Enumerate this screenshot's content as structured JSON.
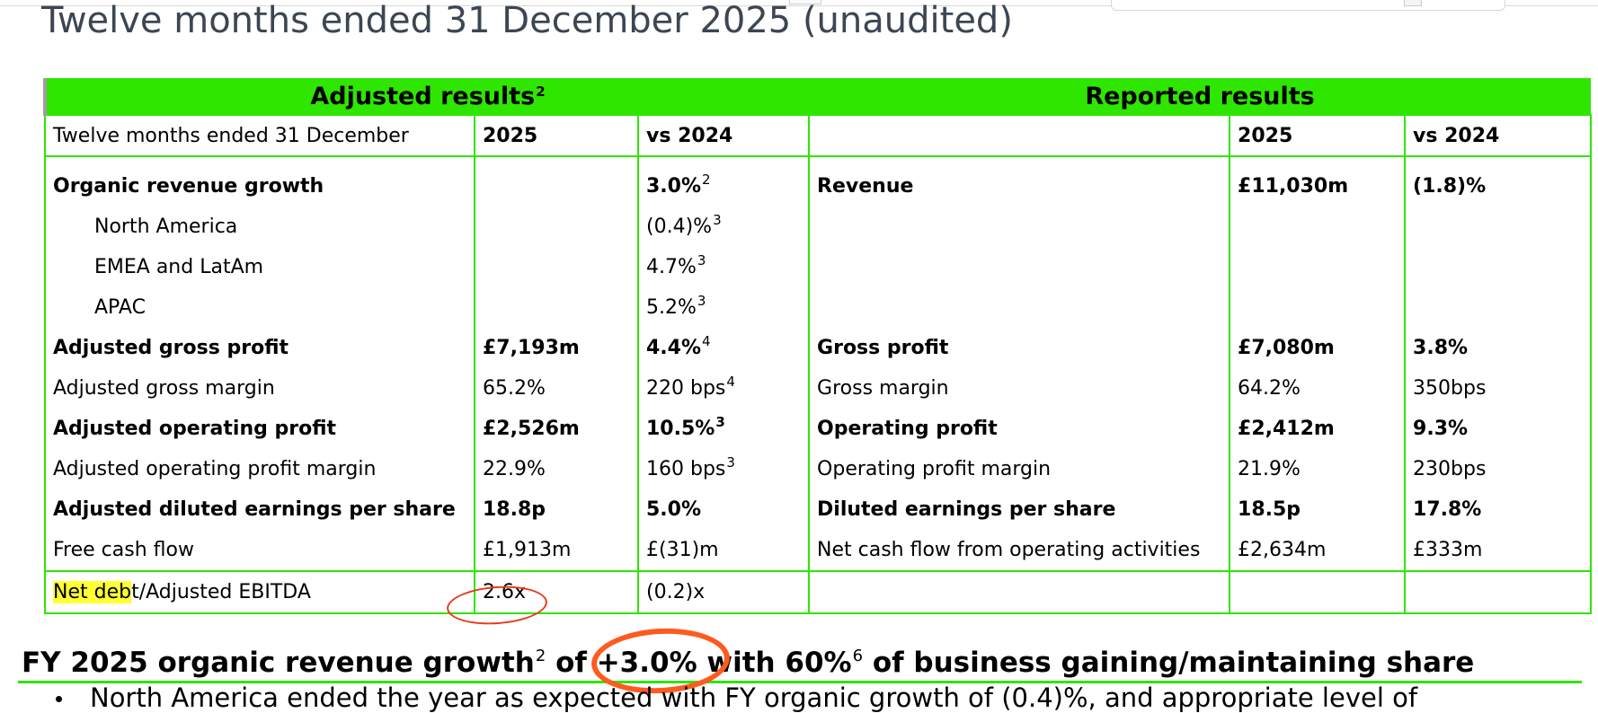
{
  "page": {
    "title": "Twelve months ended 31 December 2025 (unaudited)"
  },
  "table": {
    "band": {
      "adjusted_label": "Adjusted results",
      "adjusted_sup": "2",
      "reported_label": "Reported results"
    },
    "header": {
      "period_label": "Twelve months ended 31 December",
      "adj_year": "2025",
      "adj_vs": "vs 2024",
      "rep_metric": "",
      "rep_year": "2025",
      "rep_vs": "vs 2024"
    },
    "rows": [
      {
        "adj_metric": "Organic revenue growth",
        "adj_value": "",
        "adj_vs": "3.0%",
        "adj_vs_sup": "2",
        "rep_metric": "Revenue",
        "rep_value": "£11,030m",
        "rep_vs": "(1.8)%"
      },
      {
        "adj_metric": "North America",
        "adj_value": "",
        "adj_vs": "(0.4)%",
        "adj_vs_sup": "3",
        "rep_metric": "",
        "rep_value": "",
        "rep_vs": ""
      },
      {
        "adj_metric": "EMEA and LatAm",
        "adj_value": "",
        "adj_vs": "4.7%",
        "adj_vs_sup": "3",
        "rep_metric": "",
        "rep_value": "",
        "rep_vs": ""
      },
      {
        "adj_metric": "APAC",
        "adj_value": "",
        "adj_vs": "5.2%",
        "adj_vs_sup": "3",
        "rep_metric": "",
        "rep_value": "",
        "rep_vs": ""
      },
      {
        "adj_metric": "Adjusted gross profit",
        "adj_value": "£7,193m",
        "adj_vs": "4.4%",
        "adj_vs_sup": "4",
        "rep_metric": "Gross profit",
        "rep_value": "£7,080m",
        "rep_vs": "3.8%"
      },
      {
        "adj_metric": "Adjusted gross margin",
        "adj_value": "65.2%",
        "adj_vs": "220 bps",
        "adj_vs_sup": "4",
        "rep_metric": "Gross margin",
        "rep_value": "64.2%",
        "rep_vs": "350bps"
      },
      {
        "adj_metric": "Adjusted operating profit",
        "adj_value": "£2,526m",
        "adj_vs": "10.5%",
        "adj_vs_sup": "3",
        "rep_metric": "Operating profit",
        "rep_value": "£2,412m",
        "rep_vs": "9.3%"
      },
      {
        "adj_metric": "Adjusted operating profit margin",
        "adj_value": "22.9%",
        "adj_vs": "160 bps",
        "adj_vs_sup": "3",
        "rep_metric": "Operating profit margin",
        "rep_value": "21.9%",
        "rep_vs": "230bps"
      },
      {
        "adj_metric": "Adjusted diluted earnings per share",
        "adj_value": "18.8p",
        "adj_vs": "5.0%",
        "adj_vs_sup": "",
        "rep_metric": "Diluted earnings per share",
        "rep_value": "18.5p",
        "rep_vs": "17.8%"
      },
      {
        "adj_metric": "Free cash flow",
        "adj_value": "£1,913m",
        "adj_vs": "£(31)m",
        "adj_vs_sup": "",
        "rep_metric": "Net cash flow from operating activities",
        "rep_value": "£2,634m",
        "rep_vs": "£333m"
      }
    ],
    "last_row": {
      "metric_highlight": "Net deb",
      "metric_rest": "t/Adjusted EBITDA",
      "adj_value": "2.6x",
      "adj_vs": "(0.2)x",
      "rep_metric": "",
      "rep_value": "",
      "rep_vs": ""
    }
  },
  "headline": {
    "part1": "FY 2025 organic revenue growth",
    "sup1": "2",
    "part2": " of ",
    "growth": "+3.0%",
    "part3": " with 60%",
    "sup2": "6",
    "part4": " of business gaining/maintaining share"
  },
  "bullet": {
    "text": "North America ended the year as expected with FY organic growth of (0.4)%, and appropriate level of"
  },
  "colors": {
    "accent_green": "#2ee600",
    "highlight_yellow": "#ffff33",
    "annotation_red": "#e53b1a",
    "annotation_orange": "#ff5a1f",
    "title_gray": "#3c4653"
  }
}
